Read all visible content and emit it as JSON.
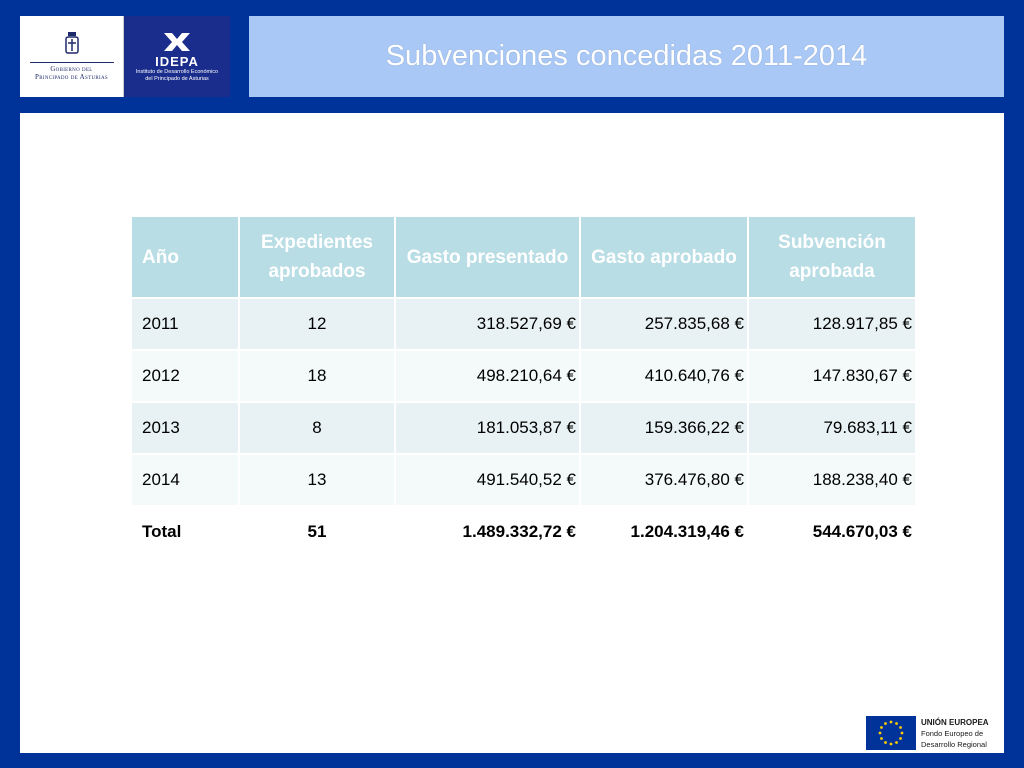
{
  "header": {
    "title": "Subvenciones concedidas 2011-2014"
  },
  "logos": {
    "gobierno": {
      "line1": "Gobierno del",
      "line2": "Principado de Asturias"
    },
    "idepa": {
      "name": "IDEPA",
      "sub1": "Instituto de Desarrollo Económico",
      "sub2": "del Principado de Asturias"
    },
    "eu": {
      "title": "UNIÓN EUROPEA",
      "sub1": "Fondo Europeo de",
      "sub2": "Desarrollo Regional"
    }
  },
  "table": {
    "headers": [
      "Año",
      "Expedientes aprobados",
      "Gasto presentado",
      "Gasto aprobado",
      "Subvención aprobada"
    ],
    "rows": [
      [
        "2011",
        "12",
        "318.527,69 €",
        "257.835,68 €",
        "128.917,85 €"
      ],
      [
        "2012",
        "18",
        "498.210,64 €",
        "410.640,76 €",
        "147.830,67 €"
      ],
      [
        "2013",
        "8",
        "181.053,87 €",
        "159.366,22 €",
        "79.683,11 €"
      ],
      [
        "2014",
        "13",
        "491.540,52 €",
        "376.476,80 €",
        "188.238,40 €"
      ]
    ],
    "total": [
      "Total",
      "51",
      "1.489.332,72 €",
      "1.204.319,46 €",
      "544.670,03 €"
    ]
  },
  "colors": {
    "background": "#003399",
    "title_bar": "#a9c8f5",
    "table_header": "#b9dde4"
  }
}
